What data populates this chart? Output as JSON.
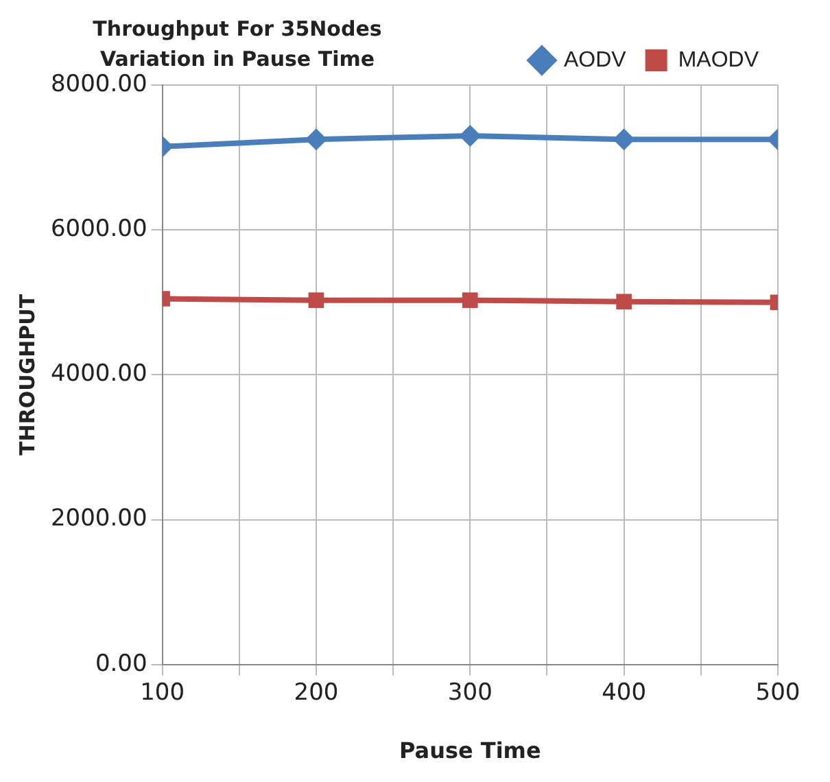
{
  "chart_data": {
    "type": "line",
    "title": "Throughput For 35Nodes Variation in Pause Time",
    "xlabel": "Pause Time",
    "ylabel": "THROUGHPUT",
    "x": [
      100,
      200,
      300,
      400,
      500
    ],
    "series": [
      {
        "name": "AODV",
        "color": "#4a7ebb",
        "marker": "diamond",
        "values": [
          7150,
          7250,
          7300,
          7250,
          7250
        ]
      },
      {
        "name": "MAODV",
        "color": "#be4b48",
        "marker": "square",
        "values": [
          5050,
          5030,
          5030,
          5010,
          5000
        ]
      }
    ],
    "xlim": [
      100,
      500
    ],
    "xticks": [
      100,
      {
        "value": 150,
        "label": null
      },
      200,
      {
        "value": 250,
        "label": null
      },
      300,
      {
        "value": 350,
        "label": null
      },
      400,
      {
        "value": 450,
        "label": null
      },
      500
    ],
    "ylim": [
      0,
      8000
    ],
    "yticks": [
      {
        "value": 0,
        "label": "0.00"
      },
      {
        "value": 2000,
        "label": "2000.00"
      },
      {
        "value": 4000,
        "label": "4000.00"
      },
      {
        "value": 6000,
        "label": "6000.00"
      },
      {
        "value": 8000,
        "label": "8000.00"
      }
    ],
    "grid": true,
    "legend": "top right",
    "line_style": "solid"
  }
}
